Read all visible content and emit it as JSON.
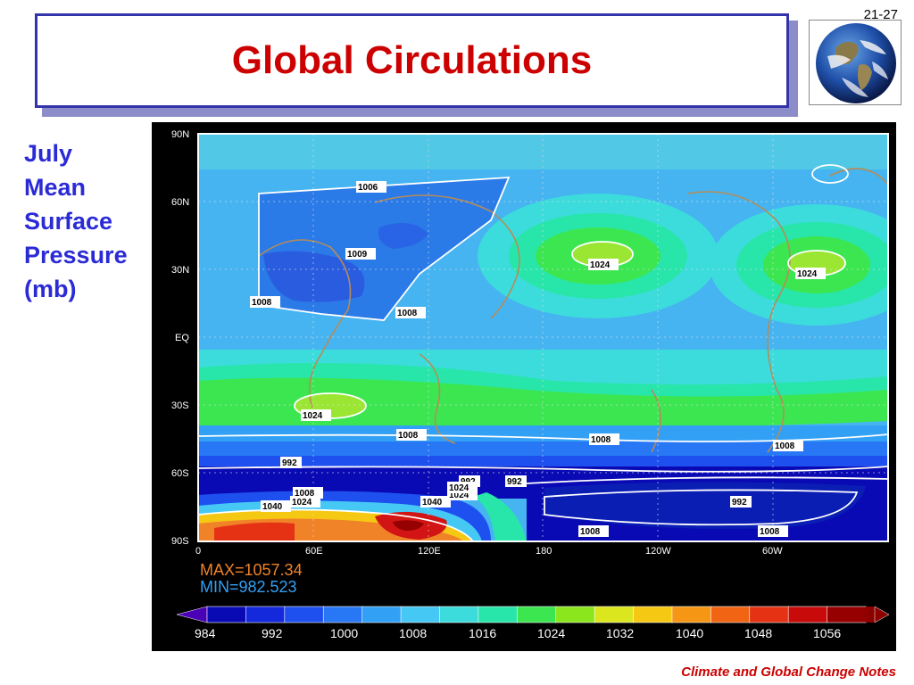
{
  "slide": {
    "number": "21-27",
    "title": "Global Circulations",
    "footer": "Climate and Global Change Notes"
  },
  "side_label": {
    "lines": [
      "July",
      "Mean",
      "Surface",
      "Pressure",
      "(mb)"
    ]
  },
  "earth_image": {
    "icon": "earth-globe-icon"
  },
  "map": {
    "lat_ticks": [
      "90N",
      "60N",
      "30N",
      "EQ",
      "30S",
      "60S",
      "90S"
    ],
    "lon_ticks": [
      "0",
      "60E",
      "120E",
      "180",
      "120W",
      "60W"
    ],
    "stats": {
      "max": "MAX=1057.34",
      "min": "MIN=982.523"
    },
    "contour_labels": {
      "a": "1006",
      "b": "1009",
      "c": "1008",
      "d": "1008",
      "e": "1024",
      "f": "1024",
      "g": "1024",
      "h": "1008",
      "i": "1008",
      "j": "1008",
      "k": "992",
      "l": "992",
      "m": "992",
      "n": "1008",
      "o": "1024",
      "p": "1040",
      "q": "1040",
      "r": "1024",
      "s": "992",
      "t": "1008",
      "u": "1008",
      "v": "1024"
    },
    "colorbar": {
      "ticks": [
        "984",
        "992",
        "1000",
        "1008",
        "1016",
        "1024",
        "1032",
        "1040",
        "1048",
        "1056"
      ],
      "colors": [
        "#0a0ab4",
        "#1428dc",
        "#1e50f0",
        "#2878f5",
        "#32a0f5",
        "#46c8f5",
        "#3cdcdc",
        "#28e6aa",
        "#3ce650",
        "#8ce61e",
        "#dce61e",
        "#f5c814",
        "#f59614",
        "#f06414",
        "#e63214",
        "#c80a0a",
        "#960000"
      ],
      "end_left": "#4a00b4",
      "end_right": "#8c0000"
    },
    "colors": {
      "ocean_base": "#46b4f0",
      "low_blue": "#2a64e6",
      "deep_low": "#0a0ab4",
      "green": "#3cdc78",
      "yellowgreen": "#9ae632",
      "orange": "#f08228",
      "red": "#d21414",
      "coast": "#b48c5a"
    }
  }
}
